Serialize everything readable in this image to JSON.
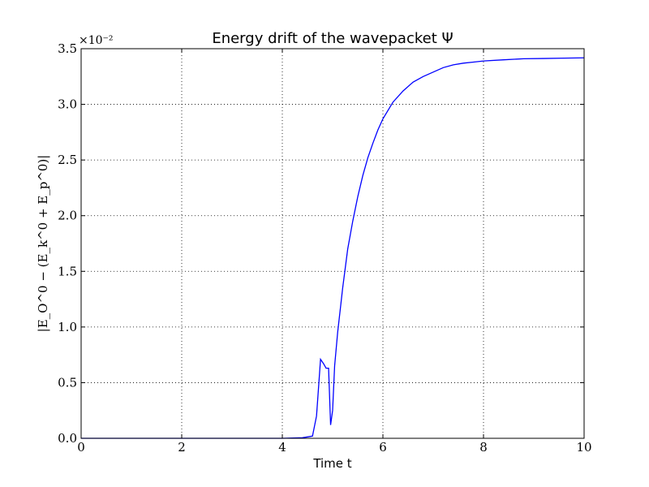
{
  "chart_data": {
    "type": "line",
    "title": "Energy drift of the wavepacket Ψ",
    "xlabel": "Time t",
    "ylabel": "|E_O^0 − (E_k^0 + E_p^0)|",
    "y_offset_label": "×10⁻²",
    "xlim": [
      0,
      10
    ],
    "ylim": [
      0,
      3.5
    ],
    "x_ticks": [
      0,
      2,
      4,
      6,
      8,
      10
    ],
    "x_tick_labels": [
      "0",
      "2",
      "4",
      "6",
      "8",
      "10"
    ],
    "y_ticks": [
      0,
      0.5,
      1.0,
      1.5,
      2.0,
      2.5,
      3.0,
      3.5
    ],
    "y_tick_labels": [
      "0.0",
      "0.5",
      "1.0",
      "1.5",
      "2.0",
      "2.5",
      "3.0",
      "3.5"
    ],
    "grid": true,
    "series": [
      {
        "color": "#0000ff",
        "x": [
          0,
          1,
          2,
          3,
          4,
          4.4,
          4.6,
          4.68,
          4.76,
          4.82,
          4.87,
          4.92,
          4.96,
          5.0,
          5.04,
          5.1,
          5.2,
          5.3,
          5.4,
          5.5,
          5.6,
          5.7,
          5.8,
          5.9,
          6.0,
          6.2,
          6.4,
          6.6,
          6.8,
          7.0,
          7.2,
          7.4,
          7.6,
          7.8,
          8.0,
          8.4,
          8.8,
          9.2,
          9.6,
          10.0
        ],
        "y": [
          0,
          0,
          0,
          0,
          0,
          0.005,
          0.02,
          0.2,
          0.71,
          0.67,
          0.63,
          0.63,
          0.12,
          0.25,
          0.65,
          0.95,
          1.35,
          1.7,
          1.95,
          2.17,
          2.36,
          2.52,
          2.65,
          2.77,
          2.87,
          3.02,
          3.12,
          3.2,
          3.25,
          3.29,
          3.33,
          3.355,
          3.37,
          3.38,
          3.39,
          3.4,
          3.41,
          3.412,
          3.415,
          3.418
        ]
      }
    ]
  }
}
